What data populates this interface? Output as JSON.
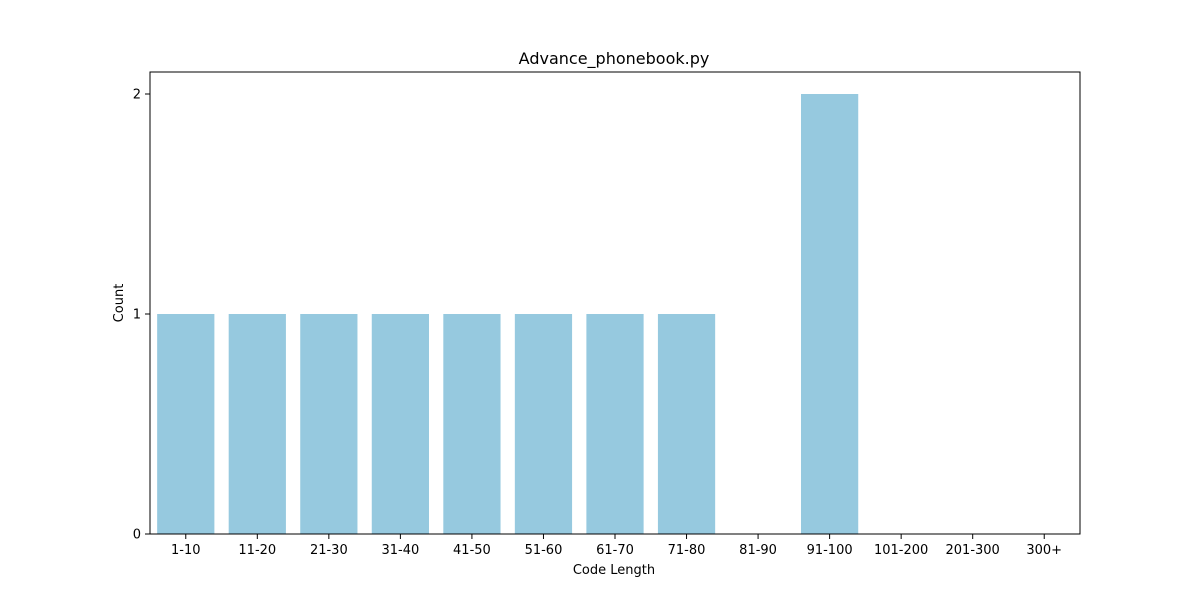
{
  "chart_data": {
    "type": "bar",
    "title": "Advance_phonebook.py",
    "xlabel": "Code Length",
    "ylabel": "Count",
    "categories": [
      "1-10",
      "11-20",
      "21-30",
      "31-40",
      "41-50",
      "51-60",
      "61-70",
      "71-80",
      "81-90",
      "91-100",
      "101-200",
      "201-300",
      "300+"
    ],
    "values": [
      1,
      1,
      1,
      1,
      1,
      1,
      1,
      1,
      0,
      2,
      0,
      0,
      0
    ],
    "ylim": [
      0,
      2.1
    ],
    "yticks": [
      "0",
      "1",
      "2"
    ],
    "grid": false,
    "legend": "none",
    "bar_color": "#96c9df"
  }
}
